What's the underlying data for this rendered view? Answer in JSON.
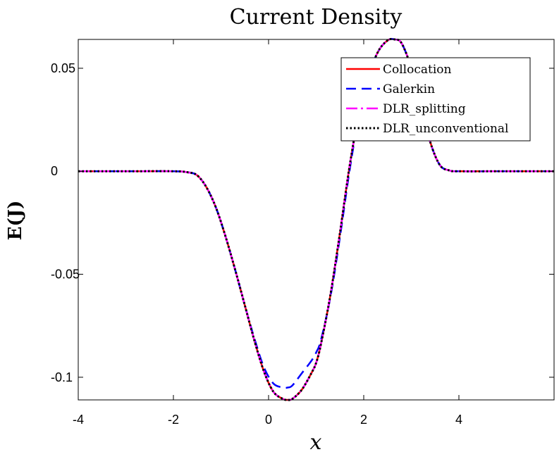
{
  "chart_data": {
    "type": "line",
    "title": "Current Density",
    "xlabel": "x",
    "ylabel": "E(J)",
    "xlim": [
      -4,
      6
    ],
    "ylim": [
      -0.111,
      0.064
    ],
    "xticks": [
      -4,
      -2,
      0,
      2,
      4
    ],
    "xtick_labels": [
      "-4",
      "-2",
      "0",
      "2",
      "4"
    ],
    "yticks": [
      -0.1,
      -0.05,
      0,
      0.05
    ],
    "ytick_labels": [
      "-0.1",
      "-0.05",
      "0",
      "0.05"
    ],
    "grid": false,
    "legend_position": "top-right",
    "x": [
      -4,
      -3,
      -2,
      -1.7,
      -1.5,
      -1.3,
      -1.1,
      -0.9,
      -0.7,
      -0.5,
      -0.3,
      -0.1,
      0.1,
      0.3,
      0.4,
      0.5,
      0.7,
      0.9,
      1.0,
      1.1,
      1.3,
      1.5,
      1.7,
      1.9,
      2.1,
      2.3,
      2.5,
      2.65,
      2.8,
      3.0,
      3.2,
      3.4,
      3.6,
      3.8,
      4.0,
      5.0,
      6.0
    ],
    "series": [
      {
        "name": "Collocation",
        "color": "#ff0000",
        "style": "solid",
        "values": [
          0,
          0,
          0,
          -0.0005,
          -0.002,
          -0.008,
          -0.018,
          -0.032,
          -0.048,
          -0.065,
          -0.082,
          -0.097,
          -0.107,
          -0.1105,
          -0.111,
          -0.1105,
          -0.106,
          -0.098,
          -0.093,
          -0.084,
          -0.06,
          -0.03,
          0.002,
          0.028,
          0.046,
          0.058,
          0.0635,
          0.064,
          0.062,
          0.05,
          0.032,
          0.014,
          0.003,
          0.0004,
          0,
          0,
          0
        ]
      },
      {
        "name": "Galerkin",
        "color": "#0000ff",
        "style": "dashed",
        "values": [
          0,
          0,
          0,
          -0.0005,
          -0.002,
          -0.008,
          -0.018,
          -0.032,
          -0.048,
          -0.065,
          -0.081,
          -0.095,
          -0.103,
          -0.105,
          -0.105,
          -0.104,
          -0.098,
          -0.092,
          -0.088,
          -0.082,
          -0.061,
          -0.032,
          0.0,
          0.027,
          0.046,
          0.058,
          0.0635,
          0.064,
          0.062,
          0.05,
          0.032,
          0.014,
          0.003,
          0.0004,
          0,
          0,
          0
        ]
      },
      {
        "name": "DLR_splitting",
        "color": "#ff00ff",
        "style": "dashdot",
        "values": [
          0,
          0,
          0,
          -0.0005,
          -0.002,
          -0.008,
          -0.018,
          -0.032,
          -0.048,
          -0.065,
          -0.082,
          -0.097,
          -0.107,
          -0.1105,
          -0.111,
          -0.1105,
          -0.106,
          -0.098,
          -0.093,
          -0.084,
          -0.06,
          -0.03,
          0.002,
          0.028,
          0.046,
          0.058,
          0.0635,
          0.064,
          0.062,
          0.05,
          0.032,
          0.014,
          0.003,
          0.0004,
          0,
          0,
          0
        ]
      },
      {
        "name": "DLR_unconventional",
        "color": "#000000",
        "style": "dotted",
        "values": [
          0,
          0,
          0,
          -0.0005,
          -0.002,
          -0.008,
          -0.018,
          -0.032,
          -0.048,
          -0.065,
          -0.082,
          -0.097,
          -0.107,
          -0.1105,
          -0.111,
          -0.1105,
          -0.106,
          -0.098,
          -0.093,
          -0.084,
          -0.06,
          -0.03,
          0.002,
          0.028,
          0.046,
          0.058,
          0.0635,
          0.064,
          0.062,
          0.05,
          0.032,
          0.014,
          0.003,
          0.0004,
          0,
          0,
          0
        ]
      }
    ]
  }
}
